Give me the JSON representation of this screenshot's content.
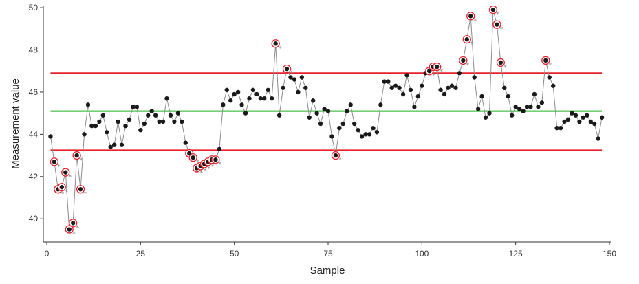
{
  "chart_data": {
    "type": "line",
    "title": "",
    "xlabel": "Sample",
    "ylabel": "Measurement value",
    "xlim": [
      0,
      150
    ],
    "ylim": [
      38.9,
      50.1
    ],
    "x_ticks": [
      0,
      25,
      50,
      75,
      100,
      125,
      150
    ],
    "y_ticks": [
      40,
      42,
      44,
      46,
      48,
      50
    ],
    "grid": false,
    "legend": "none",
    "colors": {
      "line": "#8c8c8c",
      "point": "#1a1a1a",
      "center_line": "#22b022",
      "control_limit": "#e8202a",
      "flag_ring": "#e8202a",
      "flag_marker": "#8c8c8c"
    },
    "center_line": 45.1,
    "upper_control_limit": 46.9,
    "lower_control_limit": 43.25,
    "flag_marker_text": "*",
    "series": [
      {
        "values": [
          43.9,
          42.7,
          41.4,
          41.5,
          42.2,
          39.5,
          39.8,
          43.0,
          41.4,
          44.0,
          45.4,
          44.4,
          44.4,
          44.6,
          44.9,
          44.1,
          43.4,
          43.5,
          44.6,
          43.5,
          44.4,
          44.7,
          45.3,
          45.3,
          44.2,
          44.5,
          44.9,
          45.1,
          44.9,
          44.6,
          44.6,
          45.7,
          44.9,
          44.6,
          45.0,
          44.6,
          43.6,
          43.1,
          42.9,
          42.4,
          42.5,
          42.6,
          42.7,
          42.8,
          42.8,
          43.3,
          45.4,
          46.1,
          45.6,
          45.9,
          46.0,
          45.4,
          45.0,
          45.7,
          46.1,
          45.9,
          45.7,
          45.7,
          46.1,
          45.7,
          48.3,
          44.9,
          46.2,
          47.1,
          46.7,
          46.6,
          46.0,
          46.7,
          46.2,
          44.8,
          45.6,
          45.0,
          44.5,
          45.2,
          45.1,
          43.9,
          43.0,
          44.3,
          44.5,
          45.1,
          45.4,
          44.5,
          44.2,
          43.9,
          44.0,
          44.0,
          44.3,
          44.1,
          45.4,
          46.5,
          46.5,
          46.2,
          46.3,
          46.2,
          45.9,
          46.8,
          46.1,
          45.3,
          45.8,
          46.3,
          46.9,
          47.0,
          47.2,
          47.2,
          46.1,
          45.9,
          46.2,
          46.3,
          46.2,
          46.9,
          47.5,
          48.5,
          49.6,
          46.7,
          45.2,
          45.8,
          44.8,
          45.0,
          49.9,
          49.2,
          47.4,
          46.2,
          45.8,
          44.9,
          45.3,
          45.2,
          45.1,
          45.3,
          45.3,
          45.9,
          45.3,
          45.5,
          47.5,
          46.7,
          46.3,
          44.3,
          44.3,
          44.6,
          44.7,
          45.0,
          44.9,
          44.6,
          44.8,
          44.9,
          44.6,
          44.5,
          43.8,
          44.8
        ]
      }
    ],
    "x_start": 1,
    "flagged_samples": [
      2,
      3,
      4,
      5,
      6,
      7,
      8,
      9,
      38,
      39,
      40,
      41,
      42,
      43,
      44,
      45,
      61,
      64,
      77,
      102,
      103,
      104,
      111,
      112,
      113,
      119,
      120,
      121,
      133
    ]
  }
}
